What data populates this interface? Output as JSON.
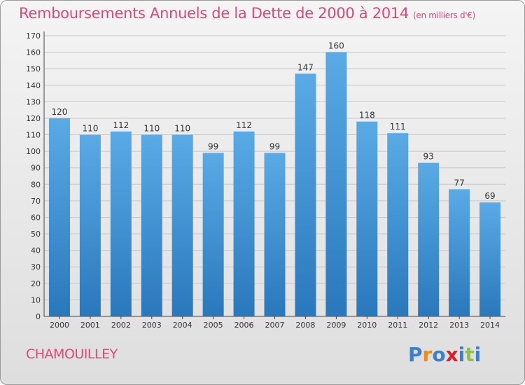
{
  "title": "Remboursements Annuels de la Dette de 2000 à 2014",
  "unit": "(en milliers d'€)",
  "commune": "CHAMOUILLEY",
  "logo_text": "Proxiti",
  "colors": {
    "title": "#e0457b",
    "bar_top": "#5aaae6",
    "bar_bottom": "#2a78bc",
    "logo_letters": [
      "#3a7fd0",
      "#f08a1a",
      "#3a7fd0",
      "#d8202a",
      "#3a7fd0",
      "#8cc63e",
      "#3a7fd0"
    ]
  },
  "chart_data": {
    "type": "bar",
    "categories": [
      "2000",
      "2001",
      "2002",
      "2003",
      "2004",
      "2005",
      "2006",
      "2007",
      "2008",
      "2009",
      "2010",
      "2011",
      "2012",
      "2013",
      "2014"
    ],
    "values": [
      120,
      110,
      112,
      110,
      110,
      99,
      112,
      99,
      147,
      160,
      118,
      111,
      93,
      77,
      69
    ],
    "title": "Remboursements Annuels de la Dette de 2000 à 2014",
    "xlabel": "",
    "ylabel": "",
    "ylim": [
      0,
      170
    ],
    "yticks": [
      0,
      10,
      20,
      30,
      40,
      50,
      60,
      70,
      80,
      90,
      100,
      110,
      120,
      130,
      140,
      150,
      160,
      170
    ],
    "grid": true,
    "data_labels": true
  }
}
